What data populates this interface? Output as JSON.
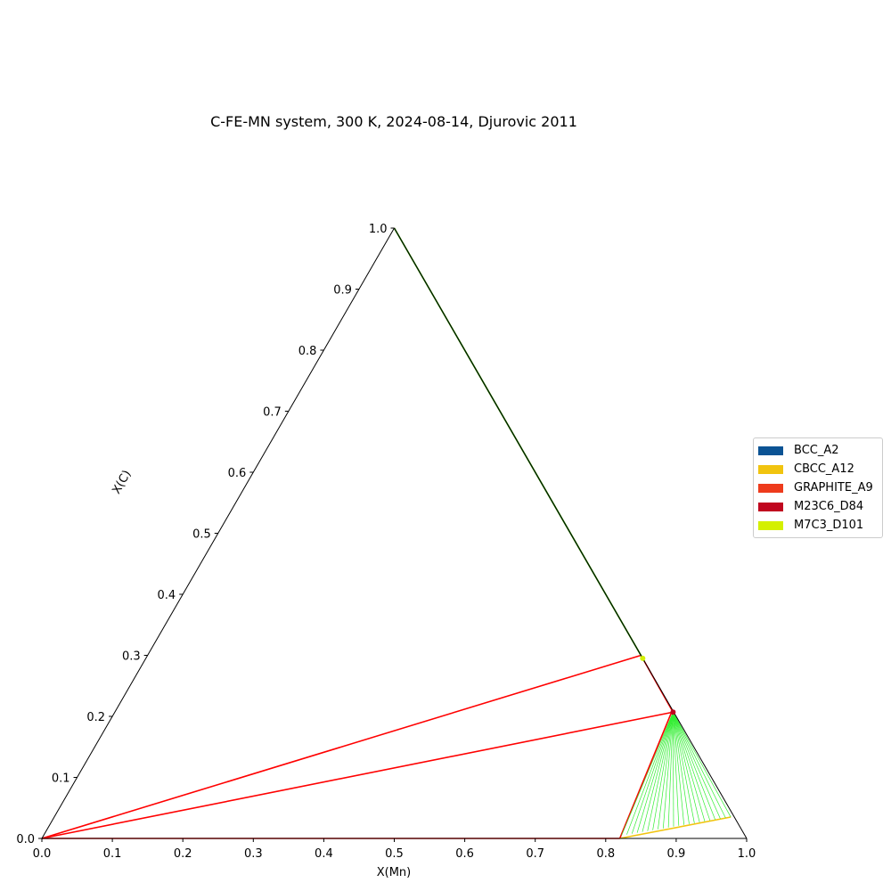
{
  "chart_data": {
    "type": "ternary-phase-diagram",
    "title": "C-FE-MN system, 300 K, 2024-08-14, Djurovic 2011",
    "xlabel": "X(Mn)",
    "ylabel": "X(C)",
    "xlim": [
      0,
      1
    ],
    "ylim": [
      0,
      1
    ],
    "x_ticks": [
      "0.0",
      "0.1",
      "0.2",
      "0.3",
      "0.4",
      "0.5",
      "0.6",
      "0.7",
      "0.8",
      "0.9",
      "1.0"
    ],
    "y_ticks": [
      "0.0",
      "0.1",
      "0.2",
      "0.3",
      "0.4",
      "0.5",
      "0.6",
      "0.7",
      "0.8",
      "0.9",
      "1.0"
    ],
    "legend_position": "right",
    "legend": [
      {
        "name": "BCC_A2",
        "color": "#0b5394"
      },
      {
        "name": "CBCC_A12",
        "color": "#f1c40f"
      },
      {
        "name": "GRAPHITE_A9",
        "color": "#ee3b1c"
      },
      {
        "name": "M23C6_D84",
        "color": "#c0061f"
      },
      {
        "name": "M7C3_D101",
        "color": "#d4f000"
      }
    ],
    "boundaries": [
      {
        "phase": "GRAPHITE_A9",
        "color": "#ff0000",
        "points": [
          [
            0.0,
            0.0
          ],
          [
            0.7,
            0.3
          ]
        ]
      },
      {
        "phase": "GRAPHITE_A9",
        "color": "#ff0000",
        "points": [
          [
            0.0,
            0.0
          ],
          [
            0.7921,
            0.2069
          ]
        ]
      },
      {
        "phase": "GRAPHITE_A9",
        "color": "#ff0000",
        "points": [
          [
            0.0,
            0.0
          ],
          [
            0.82,
            0.0
          ]
        ]
      },
      {
        "phase": "M23C6_D84",
        "color": "#ff0000",
        "points": [
          [
            0.82,
            0.0
          ],
          [
            0.79,
            0.2069
          ]
        ]
      },
      {
        "phase": "M7C3_D101",
        "color": "#ff0000",
        "points": [
          [
            0.0,
            1.0
          ],
          [
            0.7,
            0.3
          ]
        ]
      },
      {
        "phase": "M7C3_D101",
        "color": "#ff0000",
        "points": [
          [
            0.7,
            0.3
          ],
          [
            0.7921,
            0.2069
          ]
        ]
      },
      {
        "phase": "CBCC_A12",
        "color": "#f1c40f",
        "points": [
          [
            0.82,
            0.0
          ],
          [
            0.96,
            0.035
          ]
        ]
      },
      {
        "phase": "BCC_A2",
        "color": "#00cc00",
        "points": [
          [
            0.0,
            1.0
          ],
          [
            0.71,
            0.29
          ]
        ]
      }
    ],
    "tie_line_fan": {
      "color": "#33ee33",
      "apex": [
        0.7921,
        0.2069
      ],
      "from": [
        0.82,
        0.005
      ],
      "to": [
        0.96,
        0.035
      ],
      "count": 22
    },
    "phase_markers": [
      {
        "phase": "M7C3_D101",
        "color": "#d4f000",
        "point": [
          0.705,
          0.295
        ]
      },
      {
        "phase": "M23C6_D84",
        "color": "#c0061f",
        "point": [
          0.7921,
          0.2069
        ]
      }
    ]
  }
}
